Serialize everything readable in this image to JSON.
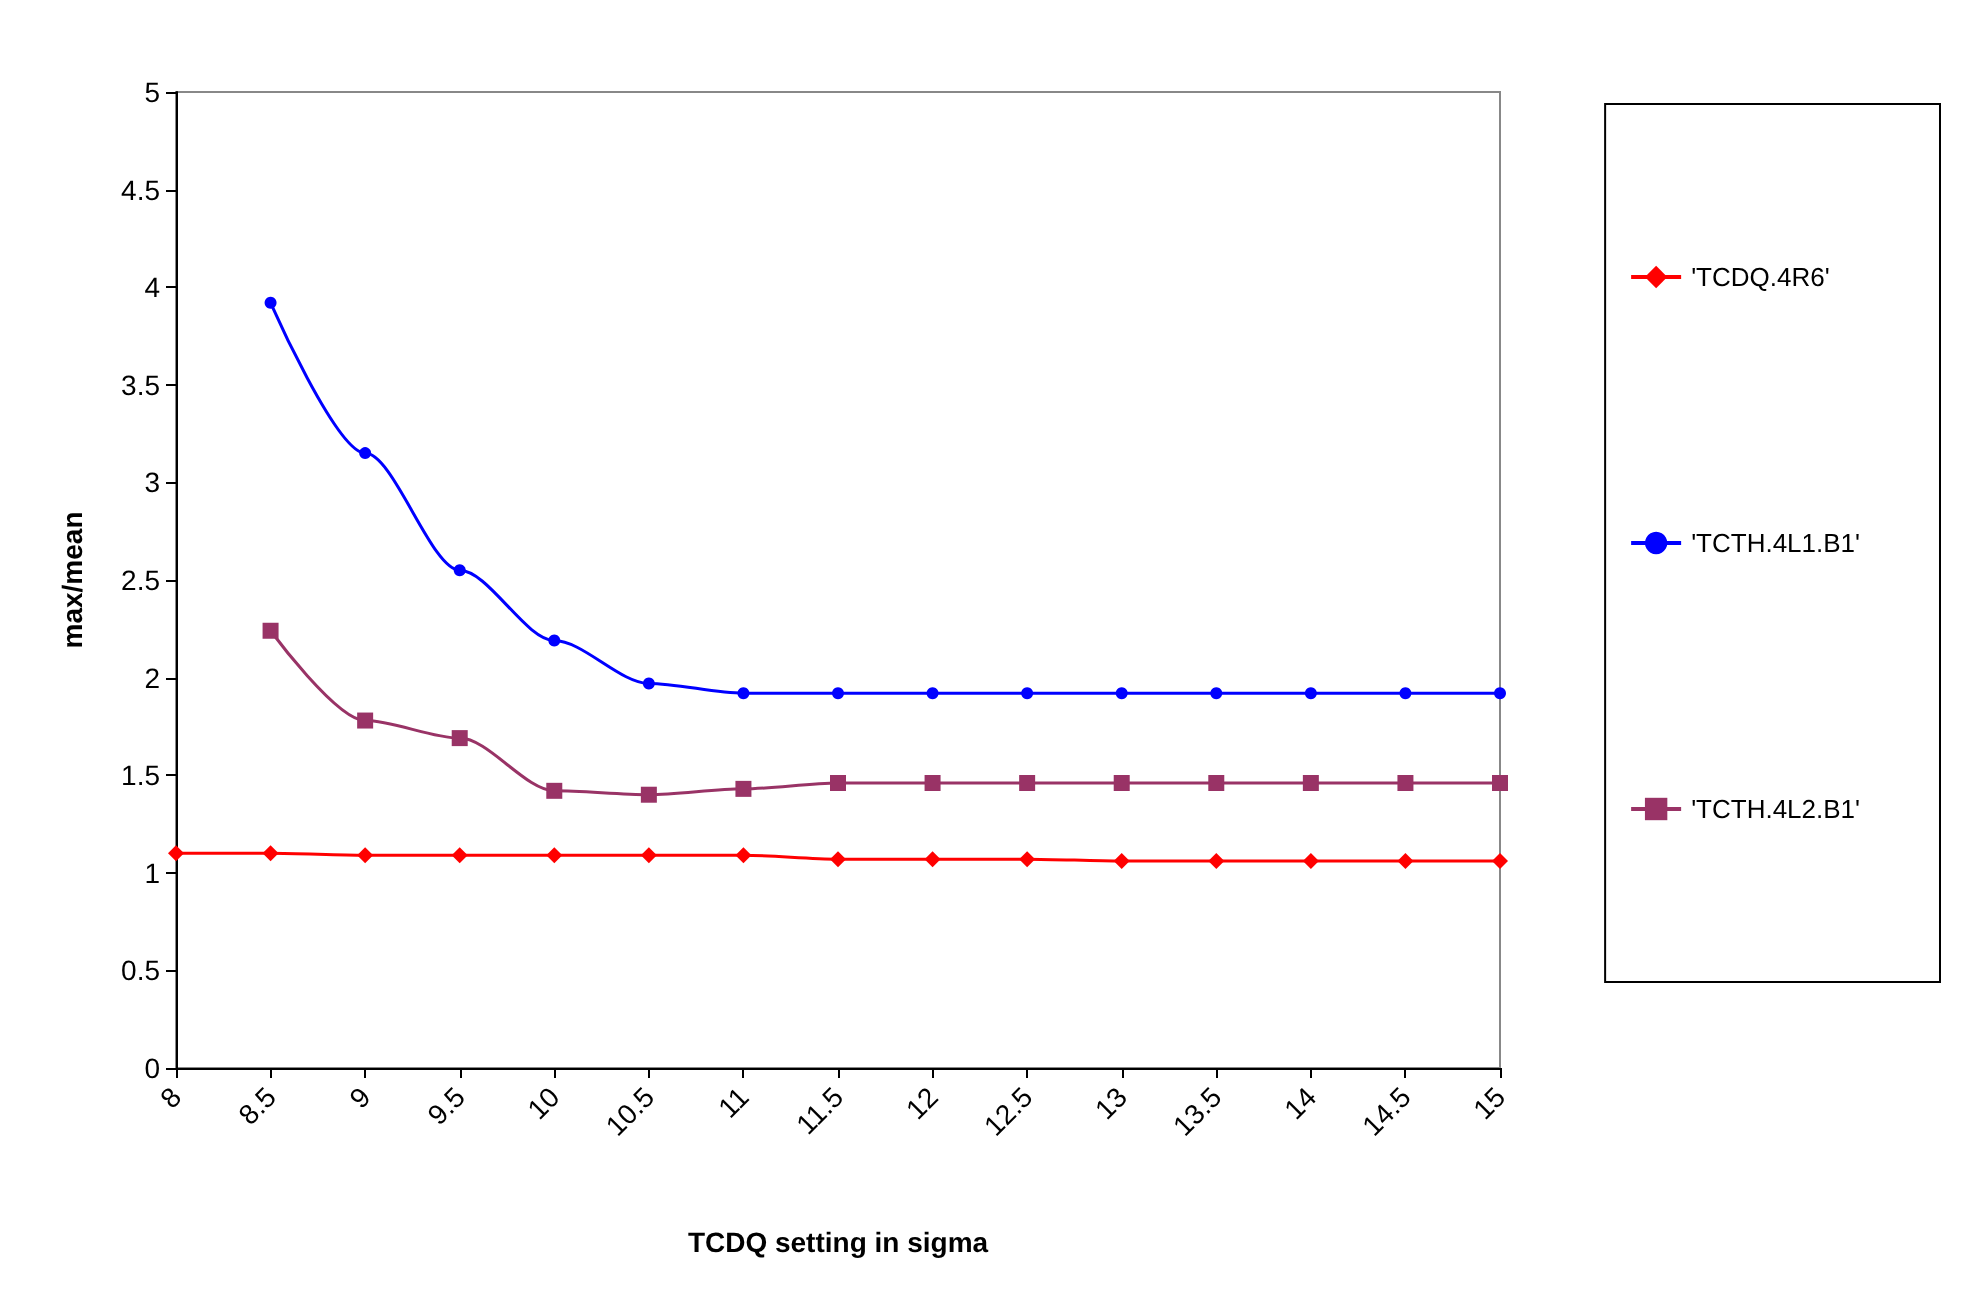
{
  "chart_data": {
    "type": "line",
    "xlabel": "TCDQ setting in sigma",
    "ylabel": "max/mean",
    "categories": [
      "8",
      "8.5",
      "9",
      "9.5",
      "10",
      "10.5",
      "11",
      "11.5",
      "12",
      "12.5",
      "13",
      "13.5",
      "14",
      "14.5",
      "15"
    ],
    "series": [
      {
        "name": "'TCDQ.4R6'",
        "color": "#ff0000",
        "marker": "diamond",
        "values": [
          1.1,
          1.1,
          1.09,
          1.09,
          1.09,
          1.09,
          1.09,
          1.07,
          1.07,
          1.07,
          1.06,
          1.06,
          1.06,
          1.06,
          1.06
        ]
      },
      {
        "name": "'TCTH.4L1.B1'",
        "color": "#0000ff",
        "marker": "circle",
        "values": [
          null,
          3.92,
          3.15,
          2.55,
          2.19,
          1.97,
          1.92,
          1.92,
          1.92,
          1.92,
          1.92,
          1.92,
          1.92,
          1.92,
          1.92
        ]
      },
      {
        "name": "'TCTH.4L2.B1'",
        "color": "#993366",
        "marker": "square",
        "values": [
          null,
          2.24,
          1.78,
          1.69,
          1.42,
          1.4,
          1.43,
          1.46,
          1.46,
          1.46,
          1.46,
          1.46,
          1.46,
          1.46,
          1.46
        ]
      }
    ],
    "ylim": [
      0,
      5
    ],
    "yticks": [
      0,
      0.5,
      1,
      1.5,
      2,
      2.5,
      3,
      3.5,
      4,
      4.5,
      5
    ],
    "grid": false,
    "legend": "right",
    "line_style": "solid"
  }
}
